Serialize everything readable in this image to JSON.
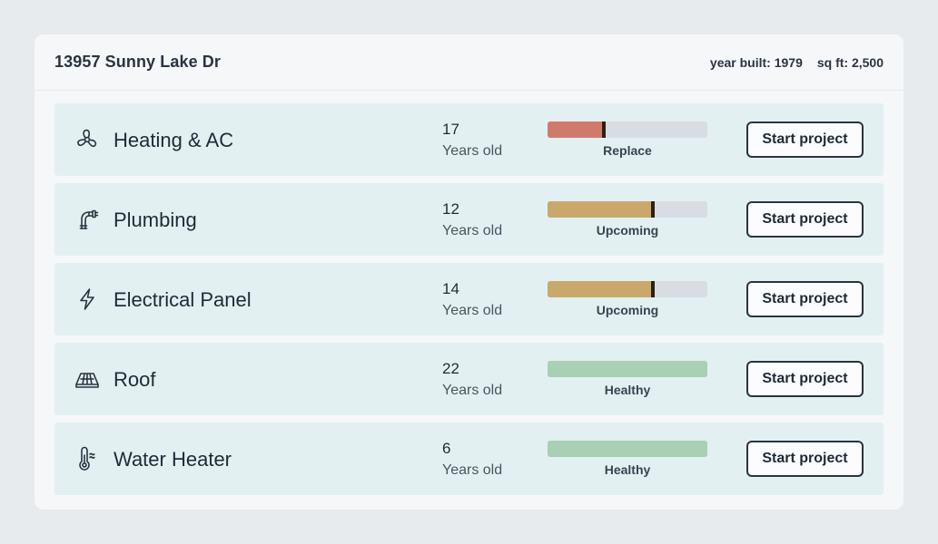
{
  "header": {
    "address": "13957 Sunny Lake Dr",
    "year_built": "year built: 1979",
    "sq_ft": "sq ft: 2,500"
  },
  "systems": [
    {
      "icon": "fan-icon",
      "name": "Heating & AC",
      "age": "17",
      "age_label": "Years old",
      "status": "Replace",
      "level": 0.35,
      "color": "#d07a6c",
      "button": "Start project"
    },
    {
      "icon": "pipe-icon",
      "name": "Plumbing",
      "age": "12",
      "age_label": "Years old",
      "status": "Upcoming",
      "level": 0.66,
      "color": "#c8a96b",
      "button": "Start project"
    },
    {
      "icon": "lightning-icon",
      "name": "Electrical Panel",
      "age": "14",
      "age_label": "Years old",
      "status": "Upcoming",
      "level": 0.66,
      "color": "#c8a96b",
      "button": "Start project"
    },
    {
      "icon": "roof-icon",
      "name": "Roof",
      "age": "22",
      "age_label": "Years old",
      "status": "Healthy",
      "level": 1.0,
      "color": "#a8d0b4",
      "button": "Start project"
    },
    {
      "icon": "thermometer-icon",
      "name": "Water Heater",
      "age": "6",
      "age_label": "Years old",
      "status": "Healthy",
      "level": 1.0,
      "color": "#a8d0b4",
      "button": "Start project"
    }
  ]
}
